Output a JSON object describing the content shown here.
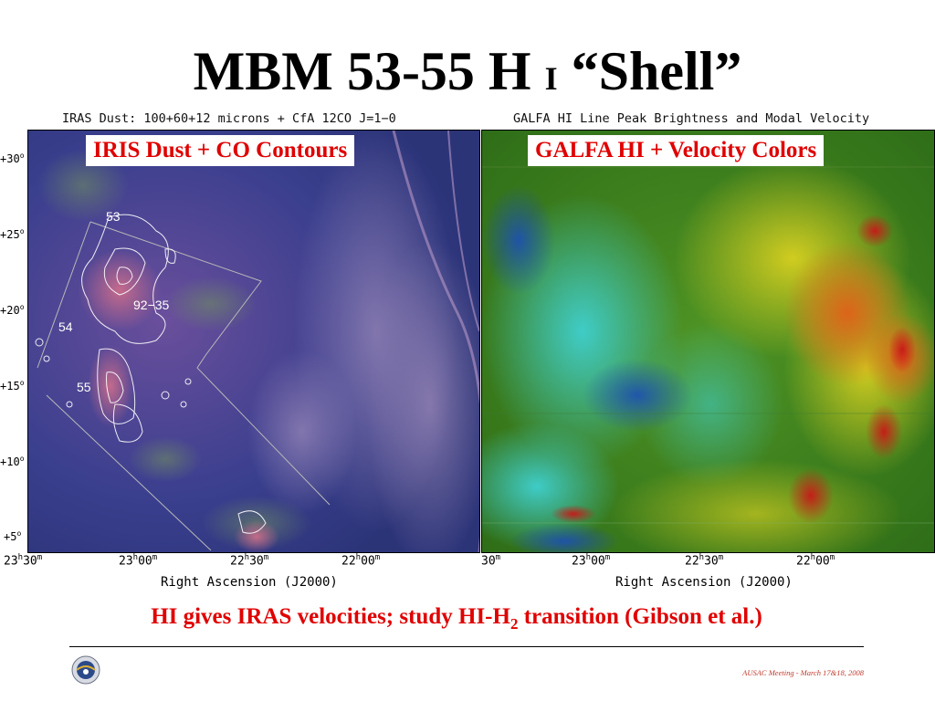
{
  "slide": {
    "title_main": "MBM 53-55 H",
    "title_small": "I",
    "title_shell": "“Shell”"
  },
  "left_panel": {
    "caption": "IRAS Dust: 100+60+12 microns + CfA 12CO J=1−0",
    "label": "IRIS Dust + CO Contours",
    "clouds": {
      "c53": "53",
      "c92": "92−35",
      "c54": "54",
      "c55": "55"
    },
    "dec_ticks": [
      "+30",
      "+25",
      "+20",
      "+15",
      "+10",
      "+5"
    ],
    "ra_ticks": [
      {
        "h": "23",
        "m": "30"
      },
      {
        "h": "23",
        "m": "00"
      },
      {
        "h": "22",
        "m": "30"
      },
      {
        "h": "22",
        "m": "00"
      }
    ],
    "xlabel": "Right Ascension (J2000)"
  },
  "right_panel": {
    "caption": "GALFA HI Line Peak Brightness and Modal Velocity",
    "label": "GALFA HI + Velocity Colors",
    "ra_ticks": [
      {
        "h": "",
        "m": "30"
      },
      {
        "h": "23",
        "m": "00"
      },
      {
        "h": "22",
        "m": "30"
      },
      {
        "h": "22",
        "m": "00"
      }
    ],
    "xlabel": "Right Ascension (J2000)"
  },
  "bottom_note": {
    "before": "HI gives IRAS velocities; study HI-H",
    "sub": "2",
    "after": " transition (Gibson et al.)"
  },
  "footer": {
    "meeting": "AUSAC Meeting - March 17&18, 2008",
    "logo_icon": "observatory-seal-icon"
  },
  "colors": {
    "accent_red": "#e00000",
    "dust_base": "#3a3f8a",
    "hi_green": "#3c8a1e"
  }
}
